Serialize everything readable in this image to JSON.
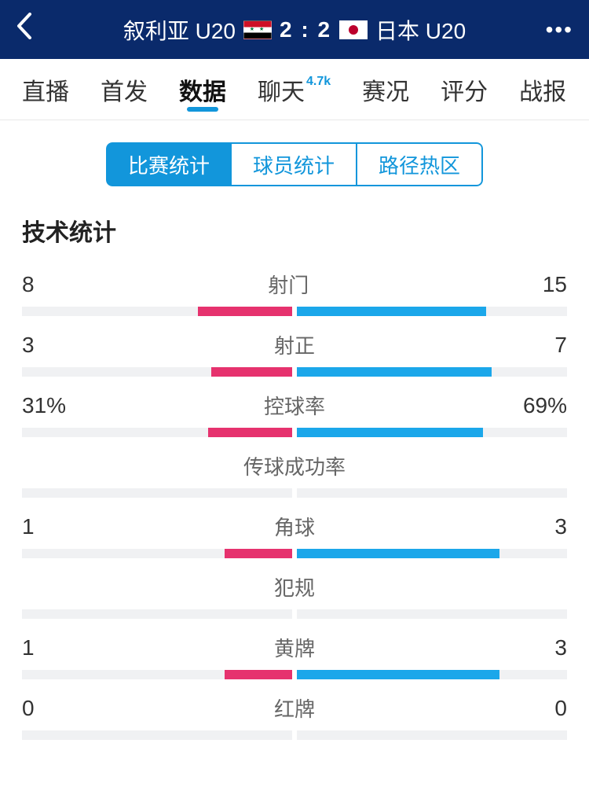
{
  "colors": {
    "header_bg": "#0a2a6b",
    "accent": "#1296db",
    "home_bar": "#e6326e",
    "away_bar": "#1ba7ea",
    "bar_track": "#f0f1f3"
  },
  "header": {
    "home_team": "叙利亚 U20",
    "away_team": "日本 U20",
    "score": "2 : 2"
  },
  "nav": {
    "tabs": [
      {
        "label": "直播",
        "active": false
      },
      {
        "label": "首发",
        "active": false
      },
      {
        "label": "数据",
        "active": true
      },
      {
        "label": "聊天",
        "active": false,
        "badge": "4.7k"
      },
      {
        "label": "赛况",
        "active": false
      },
      {
        "label": "评分",
        "active": false
      },
      {
        "label": "战报",
        "active": false
      }
    ]
  },
  "segmented": {
    "items": [
      {
        "label": "比赛统计",
        "active": true
      },
      {
        "label": "球员统计",
        "active": false
      },
      {
        "label": "路径热区",
        "active": false
      }
    ]
  },
  "section_title": "技术统计",
  "stats": [
    {
      "label": "射门",
      "home": "8",
      "away": "15",
      "home_pct": 35,
      "away_pct": 70
    },
    {
      "label": "射正",
      "home": "3",
      "away": "7",
      "home_pct": 30,
      "away_pct": 72
    },
    {
      "label": "控球率",
      "home": "31%",
      "away": "69%",
      "home_pct": 31,
      "away_pct": 69
    },
    {
      "label": "传球成功率",
      "home": "",
      "away": "",
      "home_pct": 0,
      "away_pct": 0
    },
    {
      "label": "角球",
      "home": "1",
      "away": "3",
      "home_pct": 25,
      "away_pct": 75
    },
    {
      "label": "犯规",
      "home": "",
      "away": "",
      "home_pct": 0,
      "away_pct": 0
    },
    {
      "label": "黄牌",
      "home": "1",
      "away": "3",
      "home_pct": 25,
      "away_pct": 75
    },
    {
      "label": "红牌",
      "home": "0",
      "away": "0",
      "home_pct": 0,
      "away_pct": 0
    }
  ]
}
